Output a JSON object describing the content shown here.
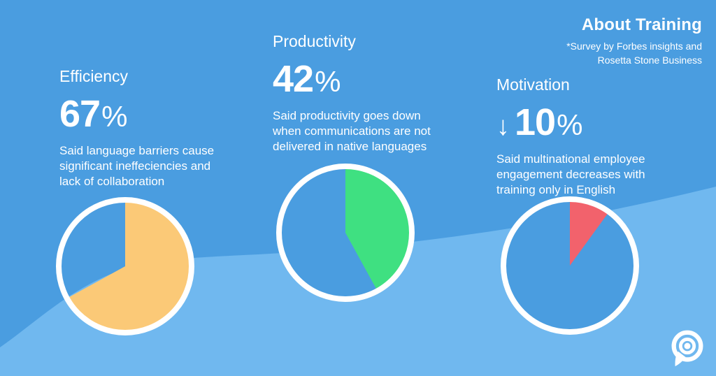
{
  "colors": {
    "bgTop": "#4a9de0",
    "bgWave": "#70b8ef",
    "white": "#ffffff"
  },
  "header": {
    "title": "About Training",
    "attribution": "*Survey by Forbes insights and\nRosetta Stone Business"
  },
  "stats": [
    {
      "label": "Efficiency",
      "arrow": "",
      "value": "67",
      "percent_sign": "%",
      "description": "Said language barriers cause\nsignificant ineffeciencies and\nlack of collaboration"
    },
    {
      "label": "Productivity",
      "arrow": "",
      "value": "42",
      "percent_sign": "%",
      "description": "Said productivity goes down\nwhen communications are not\ndelivered in native languages"
    },
    {
      "label": "Motivation",
      "arrow": "↓",
      "value": "10",
      "percent_sign": "%",
      "description": "Said multinational employee\nengagement decreases with\ntraining only in English"
    }
  ],
  "chart_data": [
    {
      "type": "pie",
      "title": "Efficiency",
      "labels": [
        "highlighted share",
        "remainder"
      ],
      "values": [
        67,
        33
      ],
      "colors": [
        "#fbc977",
        "none"
      ],
      "start_angle": "12 o'clock",
      "direction": "clockwise",
      "ring_color": "#ffffff"
    },
    {
      "type": "pie",
      "title": "Productivity",
      "labels": [
        "highlighted share",
        "remainder"
      ],
      "values": [
        42,
        58
      ],
      "colors": [
        "#3fe081",
        "#4a9de0"
      ],
      "start_angle": "12 o'clock",
      "direction": "clockwise",
      "ring_color": "#ffffff"
    },
    {
      "type": "pie",
      "title": "Motivation",
      "labels": [
        "highlighted share",
        "remainder"
      ],
      "values": [
        10,
        90
      ],
      "colors": [
        "#f2626c",
        "#4a9de0"
      ],
      "start_angle": "12 o'clock",
      "direction": "clockwise",
      "ring_color": "#ffffff"
    }
  ]
}
